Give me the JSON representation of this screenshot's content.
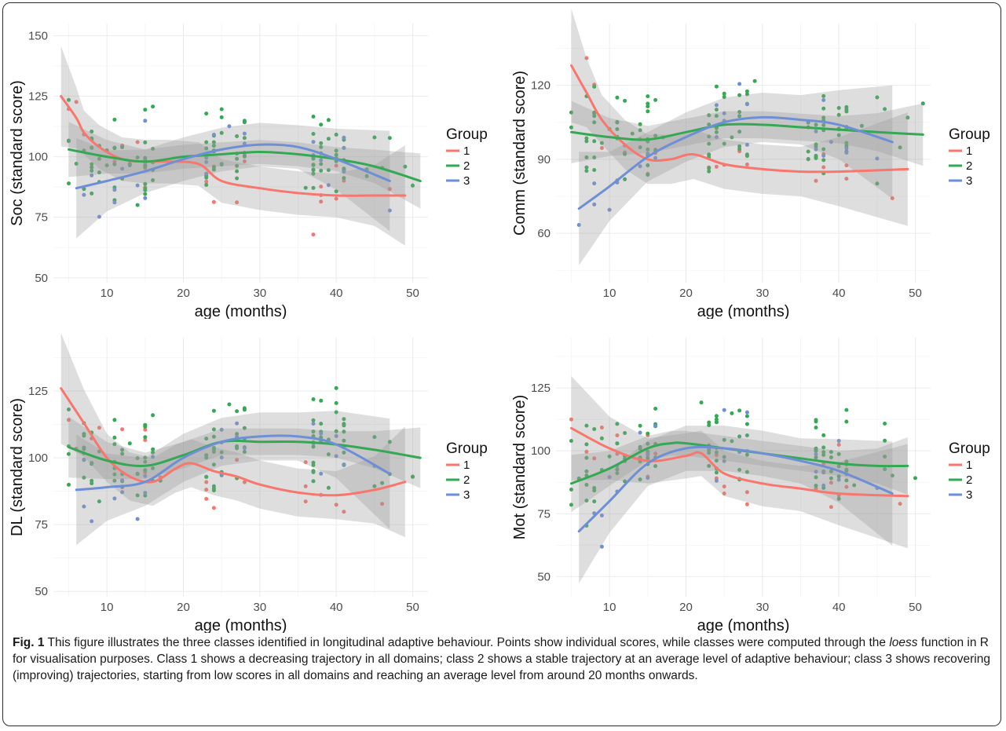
{
  "caption": {
    "label": "Fig. 1",
    "part1": " This figure illustrates the three classes identified in longitudinal adaptive behaviour. Points show individual scores, while classes were computed through the ",
    "italic": "loess",
    "part2": " function in R for visualisation purposes. Class 1 shows a decreasing trajectory in all domains; class 2 shows a stable trajectory at an average level of adaptive behaviour; class 3 shows recovering (improving) trajectories, starting from low scores in all domains and reaching an average level from around 20 months onwards."
  },
  "colors": {
    "1": "#F8766D",
    "2": "#34A853",
    "3": "#6E8FD6",
    "band": "#999999",
    "panel_bg": "#FFFFFF",
    "grid": "#EBEBEB"
  },
  "chart_data": [
    {
      "type": "scatter",
      "xlabel": "age (months)",
      "ylabel": "Soc (standard score)",
      "xlim": [
        3,
        52
      ],
      "ylim": [
        48,
        155
      ],
      "xticks": [
        10,
        20,
        30,
        40,
        50
      ],
      "yticks": [
        50,
        75,
        100,
        125,
        150
      ],
      "legend": {
        "title": "Group",
        "labels": [
          "1",
          "2",
          "3"
        ],
        "position": "right"
      },
      "grid": true,
      "series": [
        {
          "name": "1",
          "x": [
            4,
            6,
            7,
            9,
            12,
            15,
            18,
            22,
            25,
            30,
            35,
            40,
            45,
            49
          ],
          "y": [
            125,
            116,
            110,
            104,
            99,
            98,
            98,
            97,
            90,
            87,
            85,
            84,
            84,
            84
          ]
        },
        {
          "name": "2",
          "x": [
            5,
            10,
            15,
            20,
            25,
            30,
            35,
            40,
            45,
            51
          ],
          "y": [
            103,
            100,
            98,
            100,
            101,
            102,
            101,
            99,
            96,
            90
          ]
        },
        {
          "name": "3",
          "x": [
            6,
            10,
            15,
            20,
            25,
            30,
            35,
            40,
            47
          ],
          "y": [
            87,
            90,
            94,
            99,
            103,
            105,
            104,
            99,
            90
          ]
        }
      ]
    },
    {
      "type": "scatter",
      "xlabel": "age (months)",
      "ylabel": "Comm (standard score)",
      "xlim": [
        3,
        52
      ],
      "ylim": [
        40,
        145
      ],
      "xticks": [
        10,
        20,
        30,
        40,
        50
      ],
      "yticks": [
        60,
        90,
        120
      ],
      "legend": {
        "title": "Group",
        "labels": [
          "1",
          "2",
          "3"
        ],
        "position": "right"
      },
      "grid": true,
      "series": [
        {
          "name": "1",
          "x": [
            5,
            7,
            9,
            12,
            15,
            18,
            21,
            25,
            30,
            35,
            40,
            49
          ],
          "y": [
            128,
            117,
            106,
            96,
            90,
            90,
            92,
            88,
            86,
            85,
            85,
            86
          ]
        },
        {
          "name": "2",
          "x": [
            5,
            10,
            15,
            20,
            25,
            30,
            35,
            40,
            45,
            51
          ],
          "y": [
            101,
            99,
            98,
            101,
            104,
            104,
            103,
            102,
            101,
            100
          ]
        },
        {
          "name": "3",
          "x": [
            6,
            10,
            15,
            20,
            25,
            30,
            35,
            40,
            47
          ],
          "y": [
            70,
            79,
            91,
            99,
            105,
            107,
            106,
            104,
            97
          ]
        }
      ]
    },
    {
      "type": "scatter",
      "xlabel": "age (months)",
      "ylabel": "DL (standard score)",
      "xlim": [
        3,
        52
      ],
      "ylim": [
        48,
        145
      ],
      "xticks": [
        10,
        20,
        30,
        40,
        50
      ],
      "yticks": [
        50,
        75,
        100,
        125
      ],
      "legend": {
        "title": "Group",
        "labels": [
          "1",
          "2",
          "3"
        ],
        "position": "right"
      },
      "grid": true,
      "series": [
        {
          "name": "1",
          "x": [
            4,
            7,
            10,
            13,
            16,
            19,
            21,
            24,
            27,
            30,
            35,
            40,
            45,
            49
          ],
          "y": [
            126,
            113,
            100,
            93,
            91,
            96,
            98,
            95,
            93,
            90,
            87,
            86,
            88,
            91
          ]
        },
        {
          "name": "2",
          "x": [
            5,
            10,
            15,
            20,
            25,
            30,
            35,
            40,
            45,
            51
          ],
          "y": [
            104,
            99,
            97,
            101,
            106,
            106,
            106,
            105,
            103,
            100
          ]
        },
        {
          "name": "3",
          "x": [
            6,
            10,
            15,
            20,
            25,
            30,
            35,
            40,
            47
          ],
          "y": [
            88,
            89,
            91,
            100,
            106,
            108,
            108,
            105,
            94
          ]
        }
      ]
    },
    {
      "type": "scatter",
      "xlabel": "age (months)",
      "ylabel": "Mot (standard score)",
      "xlim": [
        3,
        52
      ],
      "ylim": [
        42,
        145
      ],
      "xticks": [
        10,
        20,
        30,
        40,
        50
      ],
      "yticks": [
        50,
        75,
        100,
        125
      ],
      "legend": {
        "title": "Group",
        "labels": [
          "1",
          "2",
          "3"
        ],
        "position": "right"
      },
      "grid": true,
      "series": [
        {
          "name": "1",
          "x": [
            5,
            10,
            15,
            20,
            22,
            25,
            30,
            35,
            40,
            49
          ],
          "y": [
            109,
            101,
            96,
            98,
            99,
            91,
            87,
            85,
            83,
            82
          ]
        },
        {
          "name": "2",
          "x": [
            5,
            10,
            15,
            18,
            20,
            25,
            30,
            35,
            40,
            45,
            49
          ],
          "y": [
            87,
            93,
            101,
            103,
            103,
            101,
            99,
            97,
            95,
            94,
            94
          ]
        },
        {
          "name": "3",
          "x": [
            6,
            10,
            15,
            20,
            25,
            30,
            35,
            40,
            47
          ],
          "y": [
            68,
            80,
            95,
            101,
            101,
            99,
            96,
            92,
            83
          ]
        }
      ]
    }
  ]
}
